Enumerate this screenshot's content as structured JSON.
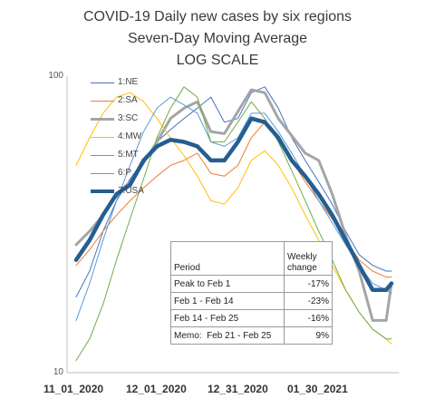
{
  "titles": {
    "line1": "COVID-19 Daily new cases by six regions",
    "line2": "Seven-Day Moving Average",
    "line3": "LOG SCALE"
  },
  "chart_data": {
    "type": "line",
    "title": "COVID-19 Daily new cases by six regions",
    "subtitle": "Seven-Day Moving Average",
    "scale_note": "LOG SCALE",
    "y_scale": "log",
    "ylim": [
      10,
      100
    ],
    "y_ticks": [
      "100",
      "10"
    ],
    "x_tick_labels": [
      "11_01_2020",
      "12_01_2020",
      "12_31_2020",
      "01_30_2021"
    ],
    "x": [
      "2020-11-01",
      "2020-11-06",
      "2020-11-11",
      "2020-11-16",
      "2020-11-21",
      "2020-11-26",
      "2020-12-01",
      "2020-12-06",
      "2020-12-11",
      "2020-12-16",
      "2020-12-21",
      "2020-12-26",
      "2020-12-31",
      "2021-01-05",
      "2021-01-10",
      "2021-01-15",
      "2021-01-20",
      "2021-01-25",
      "2021-01-30",
      "2021-02-04",
      "2021-02-09",
      "2021-02-14",
      "2021-02-19",
      "2021-02-24",
      "2021-02-26"
    ],
    "series": [
      {
        "name": "1:NE",
        "color": "#4472c4",
        "width": 1,
        "values": [
          18,
          22,
          30,
          38,
          45,
          52,
          60,
          66,
          72,
          78,
          85,
          70,
          72,
          88,
          92,
          78,
          62,
          52,
          44,
          37,
          30,
          25,
          23,
          22,
          22
        ]
      },
      {
        "name": "2:SA",
        "color": "#ed7d31",
        "width": 1,
        "values": [
          23,
          26,
          30,
          34,
          38,
          42,
          46,
          50,
          52,
          55,
          47,
          46,
          50,
          62,
          70,
          62,
          52,
          44,
          38,
          33,
          28,
          24,
          22,
          21,
          21
        ]
      },
      {
        "name": "3:SC",
        "color": "#a5a5a5",
        "width": 3,
        "values": [
          27,
          30,
          34,
          40,
          44,
          51,
          60,
          72,
          78,
          82,
          65,
          64,
          76,
          90,
          88,
          72,
          63,
          55,
          52,
          40,
          29,
          22,
          15,
          15,
          20
        ]
      },
      {
        "name": "4:MW",
        "color": "#ffc000",
        "width": 1,
        "values": [
          50,
          62,
          75,
          85,
          88,
          82,
          72,
          62,
          54,
          46,
          38,
          37,
          42,
          52,
          56,
          50,
          42,
          34,
          28,
          23,
          19,
          16,
          14,
          13,
          12.5
        ]
      },
      {
        "name": "5:MT",
        "color": "#5b9bd5",
        "width": 1,
        "values": [
          15,
          20,
          28,
          38,
          50,
          65,
          78,
          85,
          80,
          75,
          60,
          58,
          62,
          75,
          75,
          65,
          55,
          46,
          38,
          32,
          27,
          23,
          20,
          19,
          18.5
        ]
      },
      {
        "name": "6:P",
        "color": "#70ad47",
        "width": 1,
        "values": [
          11,
          13,
          17,
          24,
          33,
          45,
          62,
          78,
          92,
          85,
          60,
          60,
          70,
          82,
          72,
          60,
          48,
          38,
          30,
          24,
          19,
          16,
          14,
          13,
          13
        ]
      },
      {
        "name": "7:USA",
        "color": "#255e91",
        "width": 4.5,
        "values": [
          24,
          28,
          34,
          40,
          43,
          52,
          58,
          61,
          60,
          58,
          52,
          52,
          60,
          72,
          70,
          62,
          52,
          46,
          40,
          34,
          28,
          23,
          19,
          19,
          20
        ]
      }
    ]
  },
  "legend": [
    {
      "label": "1:NE",
      "color": "#4472c4",
      "width": 1
    },
    {
      "label": "2:SA",
      "color": "#ed7d31",
      "width": 1
    },
    {
      "label": "3:SC",
      "color": "#a5a5a5",
      "width": 3
    },
    {
      "label": "4:MW",
      "color": "#ffc000",
      "width": 1
    },
    {
      "label": "5:MT",
      "color": "#5b9bd5",
      "width": 1
    },
    {
      "label": "6:P",
      "color": "#70ad47",
      "width": 1
    },
    {
      "label": "7:USA",
      "color": "#255e91",
      "width": 4
    }
  ],
  "table": {
    "header_period": "Period",
    "header_change_line1": "Weekly",
    "header_change_line2": "change",
    "rows": [
      {
        "period": "Peak to Feb 1",
        "change": "-17%"
      },
      {
        "period": "Feb 1 - Feb 14",
        "change": "-23%"
      },
      {
        "period": "Feb 14 - Feb 25",
        "change": "-16%"
      },
      {
        "period": "Memo:  Feb 21 - Feb 25",
        "change": "9%"
      }
    ]
  }
}
